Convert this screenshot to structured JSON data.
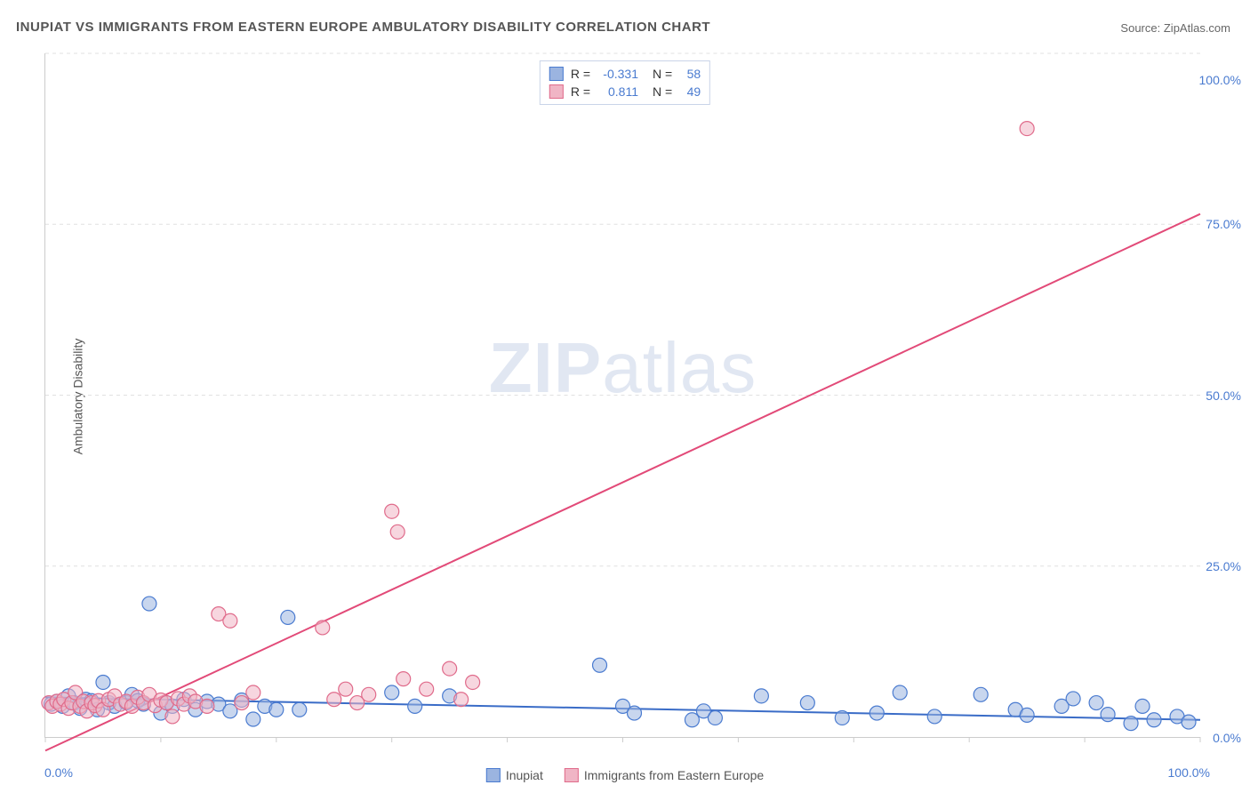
{
  "title": "INUPIAT VS IMMIGRANTS FROM EASTERN EUROPE AMBULATORY DISABILITY CORRELATION CHART",
  "source_label": "Source:",
  "source_name": "ZipAtlas.com",
  "ylabel": "Ambulatory Disability",
  "watermark_a": "ZIP",
  "watermark_b": "atlas",
  "chart": {
    "type": "scatter",
    "xlim": [
      0,
      100
    ],
    "ylim": [
      0,
      100
    ],
    "ytick_step": 25,
    "ytick_labels": [
      "0.0%",
      "25.0%",
      "50.0%",
      "75.0%",
      "100.0%"
    ],
    "xtick_positions": [
      0,
      10,
      20,
      30,
      40,
      50,
      60,
      70,
      80,
      90,
      100
    ],
    "xtick_label_0": "0.0%",
    "xtick_label_100": "100.0%",
    "grid_color": "#e0e0e0",
    "axis_color": "#cccccc",
    "background_color": "#ffffff",
    "tick_text_color": "#4a7bd0",
    "label_fontsize": 14,
    "title_fontsize": 15,
    "marker_radius": 8,
    "marker_opacity": 0.55,
    "series": [
      {
        "name": "Inupiat",
        "fill_color": "#9bb4e0",
        "stroke_color": "#4a7bd0",
        "line_color": "#3a6cc7",
        "line_width": 2,
        "R": -0.331,
        "N": 58,
        "trend": {
          "x1": 0,
          "y1": 5.8,
          "x2": 100,
          "y2": 2.5
        },
        "points": [
          [
            0.5,
            4.8
          ],
          [
            1.0,
            5.2
          ],
          [
            1.5,
            4.5
          ],
          [
            2.0,
            6.0
          ],
          [
            2.5,
            5.0
          ],
          [
            3.0,
            4.2
          ],
          [
            3.5,
            5.5
          ],
          [
            4.0,
            5.3
          ],
          [
            4.5,
            4.0
          ],
          [
            5.0,
            8.0
          ],
          [
            5.5,
            5.0
          ],
          [
            6.0,
            4.5
          ],
          [
            7.0,
            5.0
          ],
          [
            7.5,
            6.2
          ],
          [
            8.0,
            5.3
          ],
          [
            8.5,
            4.8
          ],
          [
            9.0,
            19.5
          ],
          [
            10.0,
            3.5
          ],
          [
            10.5,
            5.0
          ],
          [
            11.0,
            4.5
          ],
          [
            12.0,
            5.5
          ],
          [
            13.0,
            4.0
          ],
          [
            14.0,
            5.2
          ],
          [
            15.0,
            4.8
          ],
          [
            16.0,
            3.8
          ],
          [
            17.0,
            5.4
          ],
          [
            18.0,
            2.6
          ],
          [
            19.0,
            4.5
          ],
          [
            20.0,
            4.0
          ],
          [
            21.0,
            17.5
          ],
          [
            22.0,
            4.0
          ],
          [
            30.0,
            6.5
          ],
          [
            32.0,
            4.5
          ],
          [
            35.0,
            6.0
          ],
          [
            48.0,
            10.5
          ],
          [
            50.0,
            4.5
          ],
          [
            51.0,
            3.5
          ],
          [
            56.0,
            2.5
          ],
          [
            57.0,
            3.8
          ],
          [
            58.0,
            2.8
          ],
          [
            62.0,
            6.0
          ],
          [
            66.0,
            5.0
          ],
          [
            69.0,
            2.8
          ],
          [
            72.0,
            3.5
          ],
          [
            74.0,
            6.5
          ],
          [
            77.0,
            3.0
          ],
          [
            81.0,
            6.2
          ],
          [
            84.0,
            4.0
          ],
          [
            85.0,
            3.2
          ],
          [
            88.0,
            4.5
          ],
          [
            89.0,
            5.6
          ],
          [
            91.0,
            5.0
          ],
          [
            92.0,
            3.3
          ],
          [
            94.0,
            2.0
          ],
          [
            95.0,
            4.5
          ],
          [
            96.0,
            2.5
          ],
          [
            98.0,
            3.0
          ],
          [
            99.0,
            2.2
          ]
        ]
      },
      {
        "name": "Immigrants from Eastern Europe",
        "fill_color": "#f0b5c5",
        "stroke_color": "#e06b8b",
        "line_color": "#e24a78",
        "line_width": 2,
        "R": 0.811,
        "N": 49,
        "trend": {
          "x1": 0,
          "y1": -2.0,
          "x2": 100,
          "y2": 76.5
        },
        "points": [
          [
            0.3,
            5.0
          ],
          [
            0.6,
            4.5
          ],
          [
            1.0,
            5.2
          ],
          [
            1.3,
            4.8
          ],
          [
            1.6,
            5.5
          ],
          [
            2.0,
            4.2
          ],
          [
            2.3,
            5.0
          ],
          [
            2.6,
            6.5
          ],
          [
            3.0,
            4.5
          ],
          [
            3.3,
            5.2
          ],
          [
            3.6,
            3.8
          ],
          [
            4.0,
            5.0
          ],
          [
            4.3,
            4.6
          ],
          [
            4.6,
            5.3
          ],
          [
            5.0,
            4.0
          ],
          [
            5.5,
            5.5
          ],
          [
            6.0,
            6.0
          ],
          [
            6.5,
            4.8
          ],
          [
            7.0,
            5.2
          ],
          [
            7.5,
            4.5
          ],
          [
            8.0,
            5.8
          ],
          [
            8.5,
            5.0
          ],
          [
            9.0,
            6.2
          ],
          [
            9.5,
            4.6
          ],
          [
            10.0,
            5.4
          ],
          [
            10.5,
            5.0
          ],
          [
            11.0,
            3.0
          ],
          [
            11.5,
            5.6
          ],
          [
            12.0,
            4.8
          ],
          [
            12.5,
            6.0
          ],
          [
            13.0,
            5.2
          ],
          [
            14.0,
            4.5
          ],
          [
            15.0,
            18.0
          ],
          [
            16.0,
            17.0
          ],
          [
            17.0,
            5.0
          ],
          [
            18.0,
            6.5
          ],
          [
            24.0,
            16.0
          ],
          [
            25.0,
            5.5
          ],
          [
            26.0,
            7.0
          ],
          [
            27.0,
            5.0
          ],
          [
            28.0,
            6.2
          ],
          [
            30.0,
            33.0
          ],
          [
            30.5,
            30.0
          ],
          [
            31.0,
            8.5
          ],
          [
            33.0,
            7.0
          ],
          [
            35.0,
            10.0
          ],
          [
            36.0,
            5.5
          ],
          [
            37.0,
            8.0
          ],
          [
            85.0,
            89.0
          ]
        ]
      }
    ]
  },
  "stats_labels": {
    "R": "R =",
    "N": "N ="
  },
  "legend": {
    "items": [
      "Inupiat",
      "Immigrants from Eastern Europe"
    ]
  }
}
